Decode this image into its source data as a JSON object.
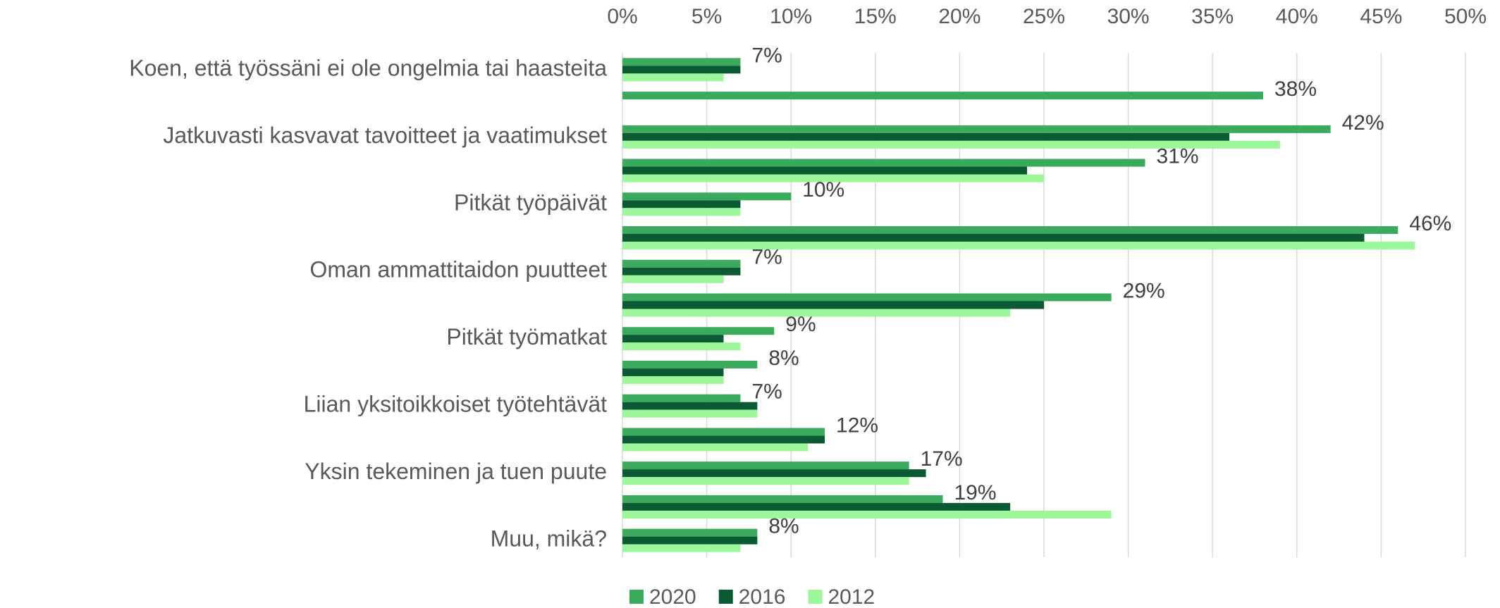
{
  "chart_data": {
    "type": "bar",
    "orientation": "horizontal",
    "categories": [
      "Koen, että työssäni ei ole ongelmia tai haasteita",
      null,
      "Jatkuvasti kasvavat tavoitteet ja vaatimukset",
      null,
      "Pitkät työpäivät",
      null,
      "Oman ammattitaidon puutteet",
      null,
      "Pitkät työmatkat",
      null,
      "Liian yksitoikkoiset työtehtävät",
      null,
      "Yksin tekeminen ja tuen puute",
      null,
      "Muu, mikä?"
    ],
    "series": [
      {
        "name": "2020",
        "color": "#3aaa5c",
        "values": [
          7,
          38,
          42,
          31,
          10,
          46,
          7,
          29,
          9,
          8,
          7,
          12,
          17,
          19,
          8
        ],
        "value_labels": [
          "7%",
          "38%",
          "42%",
          "31%",
          "10%",
          "46%",
          "7%",
          "29%",
          "9%",
          "8%",
          "7%",
          "12%",
          "17%",
          "19%",
          "8%"
        ]
      },
      {
        "name": "2016",
        "color": "#0b5a33",
        "values": [
          7,
          0,
          36,
          24,
          7,
          44,
          7,
          25,
          6,
          6,
          8,
          12,
          18,
          23,
          8
        ]
      },
      {
        "name": "2012",
        "color": "#9cf79a",
        "values": [
          6,
          0,
          39,
          25,
          7,
          47,
          6,
          23,
          7,
          6,
          8,
          11,
          17,
          29,
          7
        ]
      }
    ],
    "xlim": [
      0,
      50
    ],
    "xticks": [
      {
        "value": 0,
        "label": "0%"
      },
      {
        "value": 5,
        "label": "5%"
      },
      {
        "value": 10,
        "label": "10%"
      },
      {
        "value": 15,
        "label": "15%"
      },
      {
        "value": 20,
        "label": "20%"
      },
      {
        "value": 25,
        "label": "25%"
      },
      {
        "value": 30,
        "label": "30%"
      },
      {
        "value": 35,
        "label": "35%"
      },
      {
        "value": 40,
        "label": "40%"
      },
      {
        "value": 45,
        "label": "45%"
      },
      {
        "value": 50,
        "label": "50%"
      }
    ],
    "grid": true,
    "legend": "bottom"
  }
}
